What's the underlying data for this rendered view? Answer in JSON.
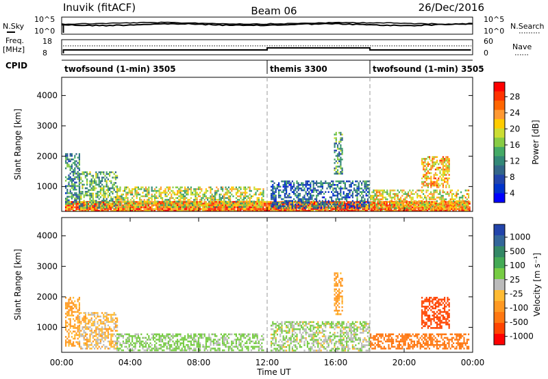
{
  "header": {
    "station": "Inuvik (fitACF)",
    "beam": "Beam 06",
    "date": "26/Dec/2016"
  },
  "top_panels": {
    "nsky_label": "N.Sky",
    "nsky_ticks": [
      "10^5",
      "10^0"
    ],
    "nsearch_label": "N.Search",
    "nsearch_ticks": [
      "10^5",
      "10^0"
    ],
    "freq_label": "Freq.",
    "freq_unit": "[MHz]",
    "freq_ticks": [
      "18",
      "8"
    ],
    "nave_label": "Nave",
    "nave_ticks": [
      "60",
      "0"
    ],
    "cpid_label": "CPID",
    "cpid_segments": [
      {
        "label": "twofsound (1-min) 3505",
        "start_h": 0,
        "end_h": 12
      },
      {
        "label": "themis 3300",
        "start_h": 12,
        "end_h": 18
      },
      {
        "label": "twofsound (1-min) 3505",
        "start_h": 18,
        "end_h": 24
      }
    ]
  },
  "power_colorbar": {
    "label": "Power [dB]",
    "ticks": [
      "28",
      "24",
      "20",
      "16",
      "12",
      "8",
      "4"
    ],
    "colors": [
      "#ff0000",
      "#ff3300",
      "#ff6600",
      "#ff9933",
      "#ffcc00",
      "#ccdd33",
      "#88cc44",
      "#44aa66",
      "#338877",
      "#336688",
      "#2244aa",
      "#0033cc",
      "#0000ff"
    ]
  },
  "velocity_colorbar": {
    "label": "Velocity [m s⁻¹]",
    "ticks": [
      "1000",
      "500",
      "100",
      "25",
      "-25",
      "-100",
      "-500",
      "-1000"
    ],
    "colors": [
      "#2244aa",
      "#336699",
      "#338866",
      "#44aa55",
      "#77cc44",
      "#bbbbbb",
      "#ffbb33",
      "#ff9922",
      "#ff7711",
      "#ff4400",
      "#ff0000"
    ]
  },
  "time_axis": {
    "title": "Time UT",
    "ticks": [
      "00:00",
      "04:00",
      "08:00",
      "12:00",
      "16:00",
      "20:00",
      "00:00"
    ]
  },
  "chart_data": [
    {
      "type": "heatmap",
      "title": "",
      "ylabel": "Slant Range [km]",
      "xlabel": "",
      "xlim": [
        0,
        24
      ],
      "ylim": [
        180,
        4600
      ],
      "yticks": [
        "4000",
        "3000",
        "2000",
        "1000"
      ],
      "quantity": "Power",
      "unit": "dB",
      "regions": [
        {
          "t0": 0.2,
          "t1": 23.8,
          "r0": 180,
          "r1": 520,
          "value": 26
        },
        {
          "t0": 0.2,
          "t1": 1.0,
          "r0": 400,
          "r1": 2100,
          "value": 10
        },
        {
          "t0": 1.0,
          "t1": 3.2,
          "r0": 300,
          "r1": 1500,
          "value": 14
        },
        {
          "t0": 3.2,
          "t1": 11.8,
          "r0": 300,
          "r1": 1000,
          "value": 18
        },
        {
          "t0": 12.2,
          "t1": 18.0,
          "r0": 300,
          "r1": 1200,
          "value": 8
        },
        {
          "t0": 15.9,
          "t1": 16.4,
          "r0": 1400,
          "r1": 2800,
          "value": 12
        },
        {
          "t0": 18.0,
          "t1": 23.8,
          "r0": 300,
          "r1": 900,
          "value": 20
        },
        {
          "t0": 21.0,
          "t1": 22.6,
          "r0": 1000,
          "r1": 2000,
          "value": 22
        }
      ]
    },
    {
      "type": "heatmap",
      "title": "",
      "ylabel": "Slant Range [km]",
      "xlabel": "Time UT",
      "xlim": [
        0,
        24
      ],
      "ylim": [
        180,
        4600
      ],
      "yticks": [
        "4000",
        "3000",
        "2000",
        "1000"
      ],
      "quantity": "Velocity",
      "unit": "m/s",
      "regions": [
        {
          "t0": 0.2,
          "t1": 1.0,
          "r0": 400,
          "r1": 2000,
          "value": -100
        },
        {
          "t0": 1.0,
          "t1": 3.2,
          "r0": 300,
          "r1": 1500,
          "value": -25
        },
        {
          "t0": 3.2,
          "t1": 11.8,
          "r0": 250,
          "r1": 800,
          "value": 100
        },
        {
          "t0": 12.2,
          "t1": 18.0,
          "r0": 250,
          "r1": 1200,
          "value": 60
        },
        {
          "t0": 15.9,
          "t1": 16.4,
          "r0": 1400,
          "r1": 2800,
          "value": -100
        },
        {
          "t0": 18.0,
          "t1": 23.8,
          "r0": 300,
          "r1": 800,
          "value": -300
        },
        {
          "t0": 21.0,
          "t1": 22.6,
          "r0": 1000,
          "r1": 2000,
          "value": -500
        }
      ]
    }
  ]
}
